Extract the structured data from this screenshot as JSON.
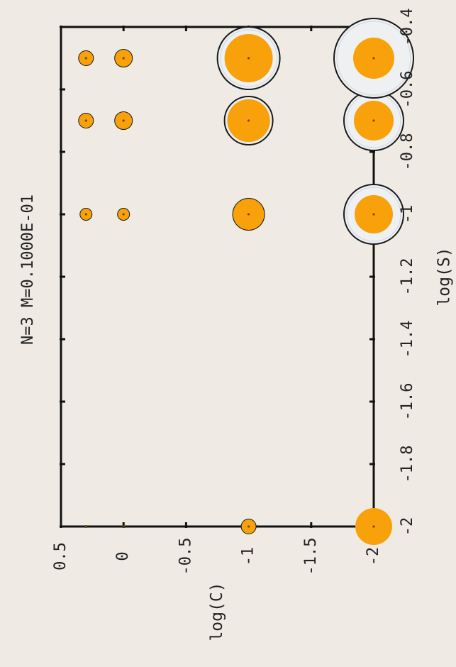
{
  "chart_data": {
    "type": "scatter",
    "title": "N=3 M=0.1000E-01",
    "xlabel": "log(S)",
    "ylabel": "log(C)",
    "xlim": [
      -2,
      -0.4
    ],
    "ylim": [
      -2,
      0.5
    ],
    "x_ticks": [
      "-2",
      "-1.8",
      "-1.6",
      "-1.4",
      "-1.2",
      "-1",
      "-0.8",
      "-0.6",
      "-0.4"
    ],
    "y_ticks": [
      "-2",
      "-1.5",
      "-1",
      "-0.5",
      "0",
      "0.5"
    ],
    "grid": false,
    "colors": {
      "fill": "#f8a10a",
      "edge": "#1a1a1a",
      "background": "#efebe4"
    },
    "points": [
      {
        "x": -2,
        "y": 0.3,
        "size": 1,
        "outer": 1
      },
      {
        "x": -2,
        "y": 0,
        "size": 1,
        "outer": 1
      },
      {
        "x": -2,
        "y": -1,
        "size": 10,
        "outer": 10
      },
      {
        "x": -2,
        "y": -2,
        "size": 26,
        "outer": 0
      },
      {
        "x": -1,
        "y": 0.3,
        "size": 8,
        "outer": 8
      },
      {
        "x": -1,
        "y": 0,
        "size": 8,
        "outer": 8
      },
      {
        "x": -1,
        "y": -1,
        "size": 22,
        "outer": 22
      },
      {
        "x": -1,
        "y": -2,
        "size": 27,
        "outer": 42
      },
      {
        "x": -0.7,
        "y": 0.3,
        "size": 10,
        "outer": 10
      },
      {
        "x": -0.7,
        "y": 0,
        "size": 12,
        "outer": 12
      },
      {
        "x": -0.7,
        "y": -1,
        "size": 30,
        "outer": 34
      },
      {
        "x": -0.7,
        "y": -2,
        "size": 28,
        "outer": 42
      },
      {
        "x": -0.5,
        "y": 0.3,
        "size": 10,
        "outer": 10
      },
      {
        "x": -0.5,
        "y": 0,
        "size": 12,
        "outer": 12
      },
      {
        "x": -0.5,
        "y": -1,
        "size": 34,
        "outer": 44
      },
      {
        "x": -0.5,
        "y": -2,
        "size": 29,
        "outer": 56
      }
    ]
  }
}
